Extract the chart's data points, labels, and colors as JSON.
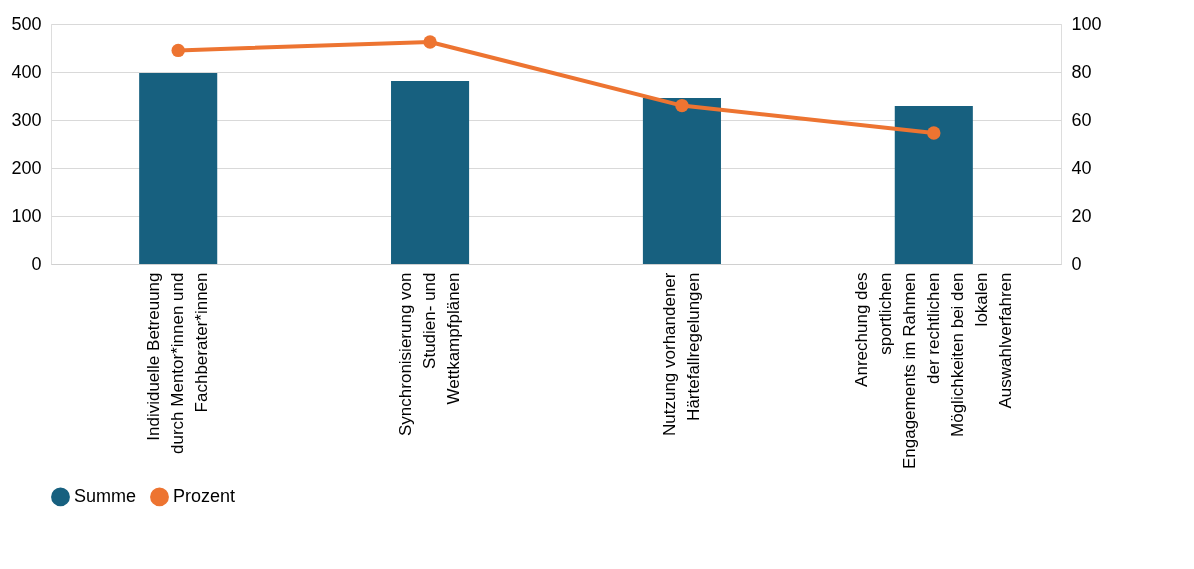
{
  "chart_data": {
    "type": "bar",
    "categories": [
      "Individuelle Betreuung durch Mentor*innen und Fachberater*innen",
      "Synchronisierung von Studien- und Wettkampfplänen",
      "Nutzung vorhandener Härtefallregelungen",
      "Anrechung des sportlichen Engagements im Rahmen der rechtlichen Möglichkeiten bei den lokalen Auswahlverfahren"
    ],
    "series": [
      {
        "name": "Summe",
        "color": "#17607f",
        "values": [
          398,
          381,
          346,
          329
        ]
      },
      {
        "name": "Prozent",
        "type": "line",
        "axis": "y2",
        "color": "#ed7431",
        "marker": "circle",
        "values": [
          89,
          92.5,
          66,
          54.6
        ]
      }
    ],
    "ylim": [
      0,
      500
    ],
    "yticks": [
      0,
      100,
      200,
      300,
      400,
      500
    ],
    "y2lim": [
      0,
      100
    ],
    "y2ticks": [
      0,
      20,
      40,
      60,
      80,
      100
    ],
    "grid": "y",
    "legend": "bottom"
  }
}
